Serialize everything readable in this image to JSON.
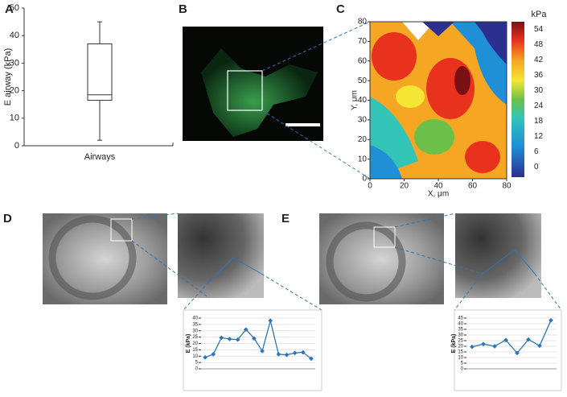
{
  "panel_labels": [
    "A",
    "B",
    "C",
    "D",
    "E"
  ],
  "chart_data": [
    {
      "type": "box",
      "ylabel": "E airway (kPa)",
      "categories": [
        "Airways"
      ],
      "ylim": [
        0,
        50
      ],
      "yticks": [
        0,
        10,
        20,
        30,
        40,
        50
      ],
      "box": {
        "min": 2,
        "q1": 16.5,
        "median": 18.5,
        "q3": 37,
        "max": 45
      }
    },
    {
      "type": "contour",
      "xlabel": "X, μm",
      "ylabel": "Y, μm",
      "xlim": [
        0,
        80
      ],
      "xticks": [
        0,
        20,
        40,
        60,
        80
      ],
      "ylim": [
        0,
        80
      ],
      "yticks": [
        0,
        10,
        20,
        30,
        40,
        50,
        60,
        70,
        80
      ],
      "colorbar_label": "kPa",
      "clim": [
        -4,
        57
      ],
      "cticks": [
        0,
        6,
        12,
        18,
        24,
        30,
        36,
        42,
        48,
        54
      ]
    },
    {
      "type": "line",
      "ylabel": "E (kPa)",
      "color": "#2e75b6",
      "ylim": [
        0,
        40
      ],
      "yticks": [
        0,
        5,
        10,
        15,
        20,
        25,
        30,
        35,
        40
      ],
      "categories": [
        null,
        null,
        null,
        null,
        null,
        null,
        null,
        null,
        null,
        null,
        null,
        null,
        null,
        null
      ],
      "values": [
        9,
        11.5,
        24.5,
        23.5,
        23,
        31,
        24,
        14,
        38,
        11.5,
        11,
        12.5,
        13,
        8
      ]
    },
    {
      "type": "line",
      "ylabel": "E (kPa)",
      "color": "#2e75b6",
      "ylim": [
        0,
        45
      ],
      "yticks": [
        0,
        5,
        10,
        15,
        20,
        25,
        30,
        35,
        40,
        45
      ],
      "categories": [
        null,
        null,
        null,
        null,
        null,
        null,
        null,
        null
      ],
      "values": [
        19.5,
        22,
        20,
        25.5,
        14,
        26,
        20.5,
        43
      ]
    }
  ]
}
